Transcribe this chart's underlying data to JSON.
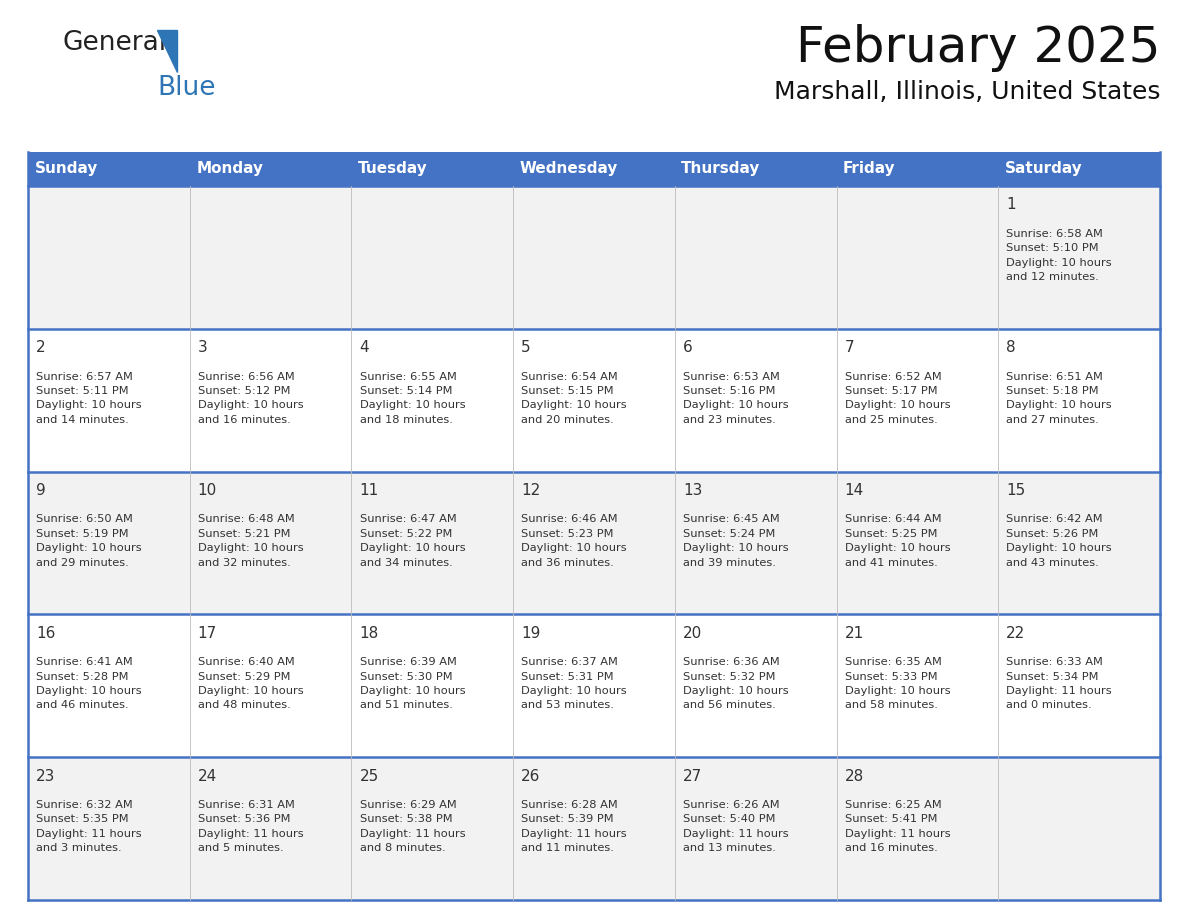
{
  "title": "February 2025",
  "subtitle": "Marshall, Illinois, United States",
  "header_bg": "#4472C4",
  "header_text_color": "#FFFFFF",
  "day_names": [
    "Sunday",
    "Monday",
    "Tuesday",
    "Wednesday",
    "Thursday",
    "Friday",
    "Saturday"
  ],
  "cell_bg_odd": "#F2F2F2",
  "cell_bg_even": "#FFFFFF",
  "cell_border_color": "#4472C4",
  "date_color": "#333333",
  "info_color": "#333333",
  "logo_general_color": "#222222",
  "logo_blue_color": "#2E75B6",
  "weeks": [
    [
      {
        "day": null,
        "info": null
      },
      {
        "day": null,
        "info": null
      },
      {
        "day": null,
        "info": null
      },
      {
        "day": null,
        "info": null
      },
      {
        "day": null,
        "info": null
      },
      {
        "day": null,
        "info": null
      },
      {
        "day": 1,
        "info": "Sunrise: 6:58 AM\nSunset: 5:10 PM\nDaylight: 10 hours\nand 12 minutes."
      }
    ],
    [
      {
        "day": 2,
        "info": "Sunrise: 6:57 AM\nSunset: 5:11 PM\nDaylight: 10 hours\nand 14 minutes."
      },
      {
        "day": 3,
        "info": "Sunrise: 6:56 AM\nSunset: 5:12 PM\nDaylight: 10 hours\nand 16 minutes."
      },
      {
        "day": 4,
        "info": "Sunrise: 6:55 AM\nSunset: 5:14 PM\nDaylight: 10 hours\nand 18 minutes."
      },
      {
        "day": 5,
        "info": "Sunrise: 6:54 AM\nSunset: 5:15 PM\nDaylight: 10 hours\nand 20 minutes."
      },
      {
        "day": 6,
        "info": "Sunrise: 6:53 AM\nSunset: 5:16 PM\nDaylight: 10 hours\nand 23 minutes."
      },
      {
        "day": 7,
        "info": "Sunrise: 6:52 AM\nSunset: 5:17 PM\nDaylight: 10 hours\nand 25 minutes."
      },
      {
        "day": 8,
        "info": "Sunrise: 6:51 AM\nSunset: 5:18 PM\nDaylight: 10 hours\nand 27 minutes."
      }
    ],
    [
      {
        "day": 9,
        "info": "Sunrise: 6:50 AM\nSunset: 5:19 PM\nDaylight: 10 hours\nand 29 minutes."
      },
      {
        "day": 10,
        "info": "Sunrise: 6:48 AM\nSunset: 5:21 PM\nDaylight: 10 hours\nand 32 minutes."
      },
      {
        "day": 11,
        "info": "Sunrise: 6:47 AM\nSunset: 5:22 PM\nDaylight: 10 hours\nand 34 minutes."
      },
      {
        "day": 12,
        "info": "Sunrise: 6:46 AM\nSunset: 5:23 PM\nDaylight: 10 hours\nand 36 minutes."
      },
      {
        "day": 13,
        "info": "Sunrise: 6:45 AM\nSunset: 5:24 PM\nDaylight: 10 hours\nand 39 minutes."
      },
      {
        "day": 14,
        "info": "Sunrise: 6:44 AM\nSunset: 5:25 PM\nDaylight: 10 hours\nand 41 minutes."
      },
      {
        "day": 15,
        "info": "Sunrise: 6:42 AM\nSunset: 5:26 PM\nDaylight: 10 hours\nand 43 minutes."
      }
    ],
    [
      {
        "day": 16,
        "info": "Sunrise: 6:41 AM\nSunset: 5:28 PM\nDaylight: 10 hours\nand 46 minutes."
      },
      {
        "day": 17,
        "info": "Sunrise: 6:40 AM\nSunset: 5:29 PM\nDaylight: 10 hours\nand 48 minutes."
      },
      {
        "day": 18,
        "info": "Sunrise: 6:39 AM\nSunset: 5:30 PM\nDaylight: 10 hours\nand 51 minutes."
      },
      {
        "day": 19,
        "info": "Sunrise: 6:37 AM\nSunset: 5:31 PM\nDaylight: 10 hours\nand 53 minutes."
      },
      {
        "day": 20,
        "info": "Sunrise: 6:36 AM\nSunset: 5:32 PM\nDaylight: 10 hours\nand 56 minutes."
      },
      {
        "day": 21,
        "info": "Sunrise: 6:35 AM\nSunset: 5:33 PM\nDaylight: 10 hours\nand 58 minutes."
      },
      {
        "day": 22,
        "info": "Sunrise: 6:33 AM\nSunset: 5:34 PM\nDaylight: 11 hours\nand 0 minutes."
      }
    ],
    [
      {
        "day": 23,
        "info": "Sunrise: 6:32 AM\nSunset: 5:35 PM\nDaylight: 11 hours\nand 3 minutes."
      },
      {
        "day": 24,
        "info": "Sunrise: 6:31 AM\nSunset: 5:36 PM\nDaylight: 11 hours\nand 5 minutes."
      },
      {
        "day": 25,
        "info": "Sunrise: 6:29 AM\nSunset: 5:38 PM\nDaylight: 11 hours\nand 8 minutes."
      },
      {
        "day": 26,
        "info": "Sunrise: 6:28 AM\nSunset: 5:39 PM\nDaylight: 11 hours\nand 11 minutes."
      },
      {
        "day": 27,
        "info": "Sunrise: 6:26 AM\nSunset: 5:40 PM\nDaylight: 11 hours\nand 13 minutes."
      },
      {
        "day": 28,
        "info": "Sunrise: 6:25 AM\nSunset: 5:41 PM\nDaylight: 11 hours\nand 16 minutes."
      },
      {
        "day": null,
        "info": null
      }
    ]
  ]
}
